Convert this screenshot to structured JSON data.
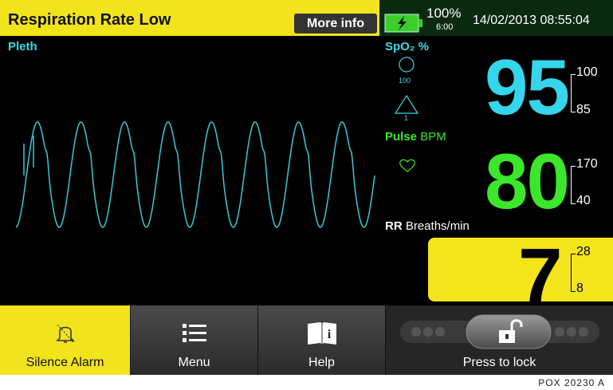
{
  "header": {
    "title": "Respiration Rate Low",
    "more_info": "More info",
    "battery": "100%",
    "battery_time": "6:00",
    "datetime": "14/02/2013 08:55:04"
  },
  "pleth": {
    "label": "Pleth"
  },
  "spo2": {
    "label": "SpO₂ %",
    "value": "95",
    "high": "100",
    "low": "85",
    "icon_circle": "100",
    "icon_triangle": "1"
  },
  "pulse": {
    "label_bold": "Pulse",
    "label": "BPM",
    "value": "80",
    "high": "170",
    "low": "40"
  },
  "rr": {
    "label_bold": "RR",
    "label": "Breaths/min",
    "value": "7",
    "high": "28",
    "low": "8"
  },
  "buttons": [
    "Silence Alarm",
    "Menu",
    "Help",
    "Press to lock"
  ],
  "footer": "POX 20230 A"
}
